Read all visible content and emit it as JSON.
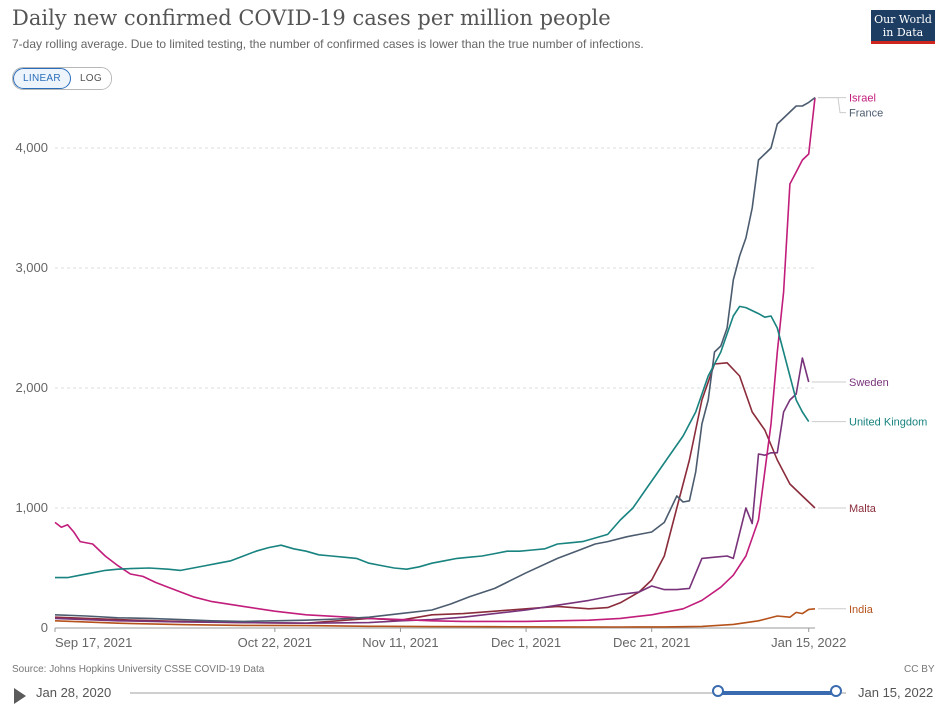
{
  "title": "Daily new confirmed COVID-19 cases per million people",
  "subtitle": "7-day rolling average. Due to limited testing, the number of confirmed cases is lower than the true number of infections.",
  "logo": {
    "line1": "Our World",
    "line2": "in Data"
  },
  "toggle": {
    "linear": "LINEAR",
    "log": "LOG",
    "selected": "LINEAR"
  },
  "source": "Source: Johns Hopkins University CSSE COVID-19 Data",
  "license": "CC BY",
  "timeline": {
    "start": "Jan 28, 2020",
    "end": "Jan 15, 2022"
  },
  "chart_data": {
    "type": "line",
    "title": "Daily new confirmed COVID-19 cases per million people",
    "xlabel": "",
    "ylabel": "",
    "grid": true,
    "ylim": [
      0,
      4400
    ],
    "xlim": [
      0,
      121
    ],
    "x_unit": "days since Sep 17, 2021",
    "x_ticks": [
      {
        "x": 0,
        "label": "Sep 17, 2021"
      },
      {
        "x": 35,
        "label": "Oct 22, 2021"
      },
      {
        "x": 55,
        "label": "Nov 11, 2021"
      },
      {
        "x": 75,
        "label": "Dec 1, 2021"
      },
      {
        "x": 95,
        "label": "Dec 21, 2021"
      },
      {
        "x": 120,
        "label": "Jan 15, 2022"
      }
    ],
    "y_ticks": [
      {
        "y": 0,
        "label": "0"
      },
      {
        "y": 1000,
        "label": "1,000"
      },
      {
        "y": 2000,
        "label": "2,000"
      },
      {
        "y": 3000,
        "label": "3,000"
      },
      {
        "y": 4000,
        "label": "4,000"
      }
    ],
    "series": [
      {
        "name": "India",
        "color": "#b5521b",
        "points": [
          [
            0,
            60
          ],
          [
            10,
            40
          ],
          [
            20,
            28
          ],
          [
            30,
            22
          ],
          [
            40,
            20
          ],
          [
            50,
            14
          ],
          [
            60,
            12
          ],
          [
            70,
            11
          ],
          [
            80,
            9
          ],
          [
            90,
            8
          ],
          [
            97,
            9
          ],
          [
            103,
            13
          ],
          [
            108,
            30
          ],
          [
            112,
            60
          ],
          [
            115,
            100
          ],
          [
            117,
            90
          ],
          [
            118,
            130
          ],
          [
            119,
            120
          ],
          [
            120,
            155
          ],
          [
            121,
            160
          ]
        ]
      },
      {
        "name": "Malta",
        "color": "#8b2c3b",
        "points": [
          [
            0,
            90
          ],
          [
            10,
            70
          ],
          [
            20,
            55
          ],
          [
            30,
            45
          ],
          [
            40,
            40
          ],
          [
            45,
            60
          ],
          [
            50,
            80
          ],
          [
            55,
            65
          ],
          [
            60,
            110
          ],
          [
            65,
            120
          ],
          [
            70,
            140
          ],
          [
            75,
            160
          ],
          [
            80,
            180
          ],
          [
            85,
            160
          ],
          [
            88,
            170
          ],
          [
            90,
            210
          ],
          [
            93,
            300
          ],
          [
            95,
            400
          ],
          [
            97,
            600
          ],
          [
            99,
            1000
          ],
          [
            101,
            1400
          ],
          [
            103,
            1900
          ],
          [
            105,
            2200
          ],
          [
            107,
            2210
          ],
          [
            109,
            2100
          ],
          [
            111,
            1800
          ],
          [
            113,
            1650
          ],
          [
            115,
            1400
          ],
          [
            117,
            1200
          ],
          [
            119,
            1100
          ],
          [
            121,
            1000
          ]
        ]
      },
      {
        "name": "Sweden",
        "color": "#78337a",
        "points": [
          [
            0,
            80
          ],
          [
            10,
            60
          ],
          [
            20,
            50
          ],
          [
            30,
            45
          ],
          [
            40,
            40
          ],
          [
            50,
            45
          ],
          [
            55,
            60
          ],
          [
            60,
            70
          ],
          [
            65,
            90
          ],
          [
            70,
            120
          ],
          [
            75,
            150
          ],
          [
            80,
            190
          ],
          [
            85,
            230
          ],
          [
            90,
            280
          ],
          [
            93,
            300
          ],
          [
            95,
            350
          ],
          [
            97,
            320
          ],
          [
            99,
            320
          ],
          [
            101,
            330
          ],
          [
            103,
            580
          ],
          [
            105,
            590
          ],
          [
            107,
            600
          ],
          [
            108,
            580
          ],
          [
            110,
            1000
          ],
          [
            111,
            870
          ],
          [
            112,
            1450
          ],
          [
            113,
            1440
          ],
          [
            114,
            1460
          ],
          [
            115,
            1460
          ],
          [
            116,
            1800
          ],
          [
            117,
            1900
          ],
          [
            118,
            1950
          ],
          [
            119,
            2250
          ],
          [
            120,
            2050
          ]
        ]
      },
      {
        "name": "Israel",
        "color": "#c11d7b",
        "points": [
          [
            0,
            880
          ],
          [
            1,
            840
          ],
          [
            2,
            860
          ],
          [
            3,
            800
          ],
          [
            4,
            720
          ],
          [
            6,
            700
          ],
          [
            8,
            600
          ],
          [
            10,
            520
          ],
          [
            12,
            450
          ],
          [
            14,
            430
          ],
          [
            16,
            380
          ],
          [
            18,
            340
          ],
          [
            20,
            300
          ],
          [
            22,
            260
          ],
          [
            25,
            220
          ],
          [
            30,
            180
          ],
          [
            35,
            140
          ],
          [
            40,
            110
          ],
          [
            45,
            95
          ],
          [
            50,
            80
          ],
          [
            55,
            70
          ],
          [
            60,
            60
          ],
          [
            65,
            55
          ],
          [
            70,
            55
          ],
          [
            75,
            55
          ],
          [
            80,
            60
          ],
          [
            85,
            65
          ],
          [
            90,
            80
          ],
          [
            95,
            110
          ],
          [
            100,
            160
          ],
          [
            103,
            230
          ],
          [
            106,
            340
          ],
          [
            108,
            440
          ],
          [
            110,
            600
          ],
          [
            112,
            900
          ],
          [
            114,
            1700
          ],
          [
            115,
            2300
          ],
          [
            116,
            2800
          ],
          [
            117,
            3700
          ],
          [
            118,
            3800
          ],
          [
            119,
            3900
          ],
          [
            120,
            3950
          ],
          [
            121,
            4420
          ]
        ]
      },
      {
        "name": "France",
        "color": "#4c5c6f",
        "points": [
          [
            0,
            110
          ],
          [
            5,
            100
          ],
          [
            10,
            85
          ],
          [
            15,
            80
          ],
          [
            20,
            70
          ],
          [
            25,
            60
          ],
          [
            30,
            55
          ],
          [
            35,
            60
          ],
          [
            40,
            65
          ],
          [
            45,
            75
          ],
          [
            50,
            90
          ],
          [
            55,
            120
          ],
          [
            60,
            150
          ],
          [
            63,
            200
          ],
          [
            66,
            260
          ],
          [
            70,
            330
          ],
          [
            75,
            460
          ],
          [
            80,
            580
          ],
          [
            83,
            640
          ],
          [
            86,
            700
          ],
          [
            88,
            720
          ],
          [
            91,
            760
          ],
          [
            93,
            780
          ],
          [
            95,
            800
          ],
          [
            97,
            880
          ],
          [
            99,
            1100
          ],
          [
            100,
            1050
          ],
          [
            101,
            1060
          ],
          [
            102,
            1300
          ],
          [
            103,
            1700
          ],
          [
            104,
            1900
          ],
          [
            105,
            2300
          ],
          [
            106,
            2350
          ],
          [
            107,
            2500
          ],
          [
            108,
            2900
          ],
          [
            109,
            3100
          ],
          [
            110,
            3250
          ],
          [
            111,
            3500
          ],
          [
            112,
            3900
          ],
          [
            113,
            3950
          ],
          [
            114,
            4000
          ],
          [
            115,
            4200
          ],
          [
            116,
            4250
          ],
          [
            117,
            4300
          ],
          [
            118,
            4350
          ],
          [
            119,
            4350
          ],
          [
            120,
            4380
          ],
          [
            121,
            4420
          ]
        ]
      },
      {
        "name": "United Kingdom",
        "color": "#18837f",
        "points": [
          [
            0,
            420
          ],
          [
            2,
            420
          ],
          [
            4,
            440
          ],
          [
            6,
            460
          ],
          [
            8,
            480
          ],
          [
            10,
            490
          ],
          [
            12,
            495
          ],
          [
            15,
            500
          ],
          [
            18,
            490
          ],
          [
            20,
            480
          ],
          [
            22,
            500
          ],
          [
            24,
            520
          ],
          [
            26,
            540
          ],
          [
            28,
            560
          ],
          [
            30,
            600
          ],
          [
            32,
            640
          ],
          [
            34,
            670
          ],
          [
            36,
            690
          ],
          [
            38,
            660
          ],
          [
            40,
            640
          ],
          [
            42,
            610
          ],
          [
            44,
            600
          ],
          [
            46,
            590
          ],
          [
            48,
            580
          ],
          [
            50,
            540
          ],
          [
            52,
            520
          ],
          [
            54,
            500
          ],
          [
            56,
            490
          ],
          [
            58,
            510
          ],
          [
            60,
            540
          ],
          [
            62,
            560
          ],
          [
            64,
            580
          ],
          [
            66,
            590
          ],
          [
            68,
            600
          ],
          [
            70,
            620
          ],
          [
            72,
            640
          ],
          [
            74,
            640
          ],
          [
            76,
            650
          ],
          [
            78,
            660
          ],
          [
            80,
            700
          ],
          [
            82,
            710
          ],
          [
            84,
            720
          ],
          [
            86,
            750
          ],
          [
            88,
            780
          ],
          [
            90,
            900
          ],
          [
            92,
            1000
          ],
          [
            94,
            1150
          ],
          [
            96,
            1300
          ],
          [
            98,
            1450
          ],
          [
            100,
            1600
          ],
          [
            102,
            1800
          ],
          [
            104,
            2100
          ],
          [
            106,
            2300
          ],
          [
            108,
            2600
          ],
          [
            109,
            2680
          ],
          [
            110,
            2670
          ],
          [
            112,
            2620
          ],
          [
            113,
            2590
          ],
          [
            114,
            2600
          ],
          [
            115,
            2500
          ],
          [
            116,
            2300
          ],
          [
            117,
            2100
          ],
          [
            118,
            1900
          ],
          [
            119,
            1800
          ],
          [
            120,
            1720
          ]
        ]
      }
    ]
  }
}
